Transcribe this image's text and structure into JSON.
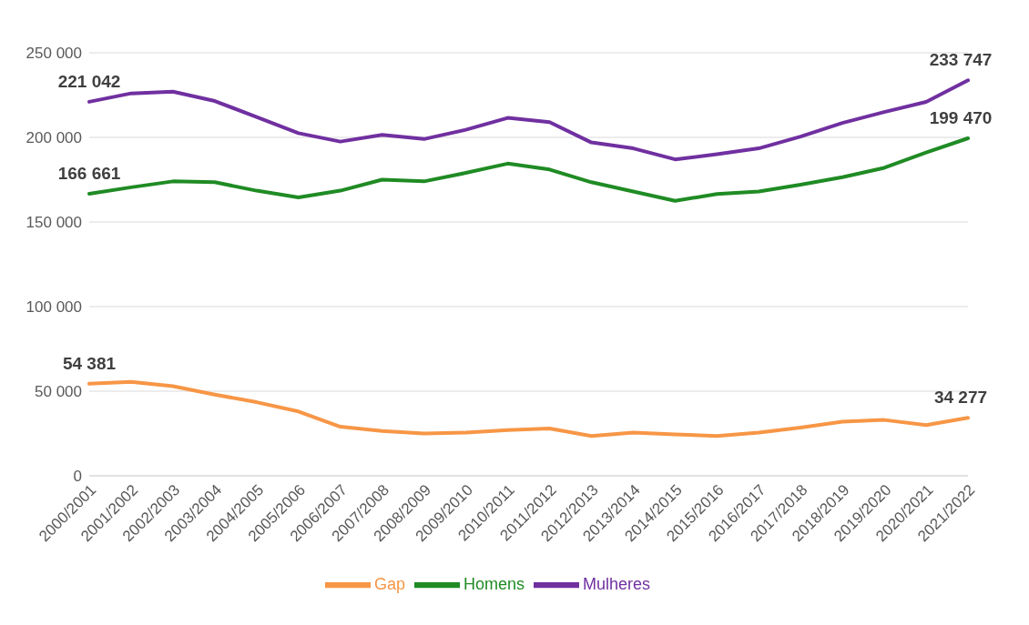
{
  "chart_data": {
    "type": "line",
    "categories": [
      "2000/2001",
      "2001/2002",
      "2002/2003",
      "2003/2004",
      "2004/2005",
      "2005/2006",
      "2006/2007",
      "2007/2008",
      "2008/2009",
      "2009/2010",
      "2010/2011",
      "2011/2012",
      "2012/2013",
      "2013/2014",
      "2014/2015",
      "2015/2016",
      "2016/2017",
      "2017/2018",
      "2018/2019",
      "2019/2020",
      "2020/2021",
      "2021/2022"
    ],
    "series": [
      {
        "name": "Homens",
        "color": "#1f8b24",
        "values": [
          166661,
          170500,
          174000,
          173500,
          168500,
          164500,
          168500,
          175000,
          174000,
          179000,
          184500,
          181000,
          173500,
          168000,
          162500,
          166500,
          168000,
          172000,
          176500,
          182000,
          191000,
          199470
        ],
        "value_labels": [
          "166 661",
          null,
          null,
          null,
          null,
          null,
          null,
          null,
          null,
          null,
          null,
          null,
          null,
          null,
          null,
          null,
          null,
          null,
          null,
          null,
          null,
          "199 470"
        ]
      },
      {
        "name": "Mulheres",
        "color": "#7030a0",
        "values": [
          221042,
          226000,
          227000,
          221500,
          212000,
          202500,
          197500,
          201500,
          199000,
          204500,
          211500,
          209000,
          197000,
          193500,
          187000,
          190000,
          193500,
          200500,
          208500,
          215000,
          221000,
          233747
        ],
        "value_labels": [
          "221 042",
          null,
          null,
          null,
          null,
          null,
          null,
          null,
          null,
          null,
          null,
          null,
          null,
          null,
          null,
          null,
          null,
          null,
          null,
          null,
          null,
          "233 747"
        ]
      },
      {
        "name": "Gap",
        "color": "#f79646",
        "values": [
          54381,
          55500,
          53000,
          48000,
          43500,
          38000,
          29000,
          26500,
          25000,
          25500,
          27000,
          28000,
          23500,
          25500,
          24500,
          23500,
          25500,
          28500,
          32000,
          33000,
          30000,
          34277
        ],
        "value_labels": [
          "54 381",
          null,
          null,
          null,
          null,
          null,
          null,
          null,
          null,
          null,
          null,
          null,
          null,
          null,
          null,
          null,
          null,
          null,
          null,
          null,
          null,
          "34 277"
        ]
      }
    ],
    "ylim": [
      0,
      250000
    ],
    "yticks": [
      {
        "value": 0,
        "label": "0"
      },
      {
        "value": 50000,
        "label": "50 000"
      },
      {
        "value": 100000,
        "label": "100 000"
      },
      {
        "value": 150000,
        "label": "150 000"
      },
      {
        "value": 200000,
        "label": "200 000"
      },
      {
        "value": 250000,
        "label": "250 000"
      }
    ],
    "grid": "y",
    "legend": "bottom",
    "line_style": "solid"
  }
}
